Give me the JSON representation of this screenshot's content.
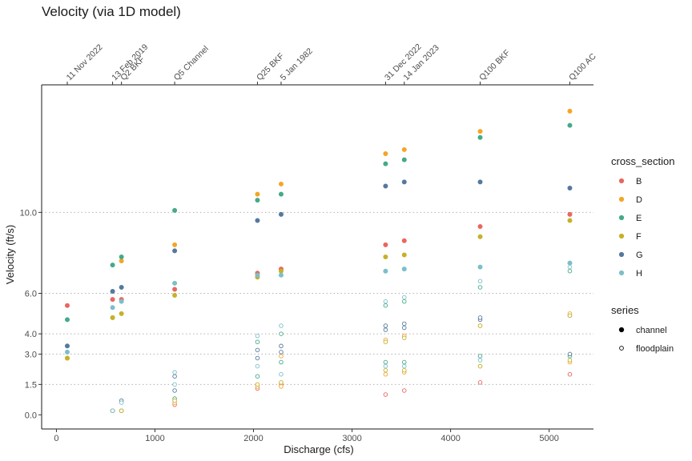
{
  "chart_data": {
    "type": "scatter",
    "title": "Velocity (via 1D model)",
    "xlabel": "Discharge (cfs)",
    "ylabel": "Velocity (ft/s)",
    "xlim": [
      -150,
      5450
    ],
    "ylim": [
      -0.7,
      16.3
    ],
    "x_ticks": [
      0,
      1000,
      2000,
      3000,
      4000,
      5000
    ],
    "y_ticks": [
      0.0,
      1.5,
      3.0,
      4.0,
      6.0,
      10.0
    ],
    "y_tick_labels": [
      "0.0",
      "1.5",
      "3.0",
      "4.0",
      "6.0",
      "10.0"
    ],
    "hgrid_dotted": [
      1.5,
      3.0,
      4.0,
      6.0,
      10.0
    ],
    "top_axis": [
      {
        "x": 110,
        "label": "11 Nov 2022"
      },
      {
        "x": 570,
        "label": "13 Feb 2019"
      },
      {
        "x": 660,
        "label": "Q2 BKF"
      },
      {
        "x": 1200,
        "label": "Q5 Channel"
      },
      {
        "x": 2040,
        "label": "Q25 BKF"
      },
      {
        "x": 2280,
        "label": "5 Jan 1982"
      },
      {
        "x": 3340,
        "label": "31 Dec 2022"
      },
      {
        "x": 3530,
        "label": "14 Jan 2023"
      },
      {
        "x": 4300,
        "label": "Q100 BKF"
      },
      {
        "x": 5210,
        "label": "Q100 AC"
      }
    ],
    "colors": {
      "B": "#e8675f",
      "D": "#f4a527",
      "E": "#45a98a",
      "F": "#c5b12a",
      "G": "#55799d",
      "H": "#7bbfc9"
    },
    "legend": {
      "position": "right",
      "cross_section_title": "cross_section",
      "cross_sections": [
        "B",
        "D",
        "E",
        "F",
        "G",
        "H"
      ],
      "series_title": "series",
      "series": [
        "channel",
        "floodplain"
      ]
    },
    "series": [
      {
        "name": "B",
        "channel": [
          [
            110,
            5.4
          ],
          [
            570,
            5.7
          ],
          [
            660,
            5.7
          ],
          [
            1200,
            6.2
          ],
          [
            2040,
            7.0
          ],
          [
            2280,
            7.2
          ],
          [
            3340,
            8.4
          ],
          [
            3530,
            8.6
          ],
          [
            4300,
            9.3
          ],
          [
            5210,
            9.9
          ]
        ],
        "floodplain": [
          [
            570,
            0.2
          ],
          [
            660,
            0.2
          ],
          [
            1200,
            0.5
          ],
          [
            2040,
            1.3
          ],
          [
            2280,
            1.5
          ],
          [
            3340,
            1.0
          ],
          [
            3530,
            1.2
          ],
          [
            4300,
            1.6
          ],
          [
            5210,
            2.0
          ]
        ]
      },
      {
        "name": "D",
        "channel": [
          [
            110,
            2.8
          ],
          [
            570,
            4.8
          ],
          [
            660,
            7.6
          ],
          [
            1200,
            8.4
          ],
          [
            2040,
            10.9
          ],
          [
            2280,
            11.4
          ],
          [
            3340,
            12.9
          ],
          [
            3530,
            13.1
          ],
          [
            4300,
            14.0
          ],
          [
            5210,
            15.0
          ]
        ],
        "floodplain": [
          [
            570,
            0.2
          ],
          [
            660,
            0.2
          ],
          [
            1200,
            0.6
          ],
          [
            2040,
            1.4
          ],
          [
            2280,
            1.4
          ],
          [
            3340,
            2.0
          ],
          [
            3530,
            2.1
          ],
          [
            4300,
            2.4
          ],
          [
            5210,
            2.6
          ]
        ]
      },
      {
        "name": "E",
        "channel": [
          [
            110,
            4.7
          ],
          [
            570,
            7.4
          ],
          [
            660,
            7.8
          ],
          [
            1200,
            10.1
          ],
          [
            2040,
            10.6
          ],
          [
            2280,
            10.9
          ],
          [
            3340,
            12.4
          ],
          [
            3530,
            12.6
          ],
          [
            4300,
            13.7
          ],
          [
            5210,
            14.3
          ]
        ],
        "floodplain": [
          [
            570,
            0.2
          ],
          [
            660,
            0.2
          ],
          [
            1200,
            0.8
          ],
          [
            2040,
            1.9
          ],
          [
            2280,
            2.6
          ],
          [
            3340,
            2.6
          ],
          [
            3530,
            2.6
          ],
          [
            4300,
            2.9
          ],
          [
            5210,
            2.9
          ]
        ]
      },
      {
        "name": "F",
        "channel": [
          [
            110,
            2.8
          ],
          [
            570,
            4.8
          ],
          [
            660,
            5.0
          ],
          [
            1200,
            5.9
          ],
          [
            2040,
            6.8
          ],
          [
            2280,
            7.1
          ],
          [
            3340,
            7.8
          ],
          [
            3530,
            7.9
          ],
          [
            4300,
            8.8
          ],
          [
            5210,
            9.6
          ]
        ],
        "floodplain": [
          [
            570,
            0.2
          ],
          [
            660,
            0.2
          ],
          [
            1200,
            0.7
          ],
          [
            2040,
            1.5
          ],
          [
            2280,
            1.6
          ],
          [
            3340,
            2.2
          ],
          [
            3530,
            2.2
          ],
          [
            4300,
            2.4
          ],
          [
            5210,
            2.7
          ]
        ]
      },
      {
        "name": "G",
        "channel": [
          [
            110,
            3.4
          ],
          [
            570,
            6.1
          ],
          [
            660,
            6.3
          ],
          [
            1200,
            8.1
          ],
          [
            2040,
            9.6
          ],
          [
            2280,
            9.9
          ],
          [
            3340,
            11.3
          ],
          [
            3530,
            11.5
          ],
          [
            4300,
            11.5
          ],
          [
            5210,
            11.2
          ]
        ],
        "floodplain": [
          [
            570,
            0.2
          ],
          [
            660,
            0.7
          ],
          [
            1200,
            1.9
          ],
          [
            2040,
            3.2
          ],
          [
            2280,
            3.4
          ],
          [
            3340,
            4.2
          ],
          [
            3530,
            4.3
          ],
          [
            4300,
            4.7
          ],
          [
            5210,
            4.9
          ]
        ]
      },
      {
        "name": "H",
        "channel": [
          [
            110,
            3.1
          ],
          [
            570,
            5.3
          ],
          [
            660,
            5.6
          ],
          [
            1200,
            6.5
          ],
          [
            2040,
            6.9
          ],
          [
            2280,
            6.9
          ],
          [
            3340,
            7.1
          ],
          [
            3530,
            7.2
          ],
          [
            4300,
            7.3
          ],
          [
            5210,
            7.5
          ]
        ],
        "floodplain": [
          [
            570,
            0.2
          ],
          [
            660,
            0.6
          ],
          [
            1200,
            2.1
          ],
          [
            2040,
            3.9
          ],
          [
            2280,
            4.4
          ],
          [
            3340,
            5.6
          ],
          [
            3530,
            5.8
          ],
          [
            4300,
            6.6
          ],
          [
            5210,
            7.3
          ]
        ]
      }
    ],
    "extra_channel_points": [],
    "extra_floodplain_points": [
      {
        "cs": "G",
        "x": 1200,
        "y": 1.2
      },
      {
        "cs": "H",
        "x": 1200,
        "y": 1.5
      },
      {
        "cs": "E",
        "x": 2040,
        "y": 3.6
      },
      {
        "cs": "G",
        "x": 2040,
        "y": 2.8
      },
      {
        "cs": "H",
        "x": 2040,
        "y": 2.4
      },
      {
        "cs": "E",
        "x": 2280,
        "y": 4.0
      },
      {
        "cs": "G",
        "x": 2280,
        "y": 3.1
      },
      {
        "cs": "H",
        "x": 2280,
        "y": 2.0
      },
      {
        "cs": "D",
        "x": 2280,
        "y": 2.9
      },
      {
        "cs": "E",
        "x": 3340,
        "y": 5.4
      },
      {
        "cs": "G",
        "x": 3340,
        "y": 4.4
      },
      {
        "cs": "D",
        "x": 3340,
        "y": 3.7
      },
      {
        "cs": "F",
        "x": 3340,
        "y": 3.6
      },
      {
        "cs": "H",
        "x": 3340,
        "y": 2.4
      },
      {
        "cs": "E",
        "x": 3530,
        "y": 5.6
      },
      {
        "cs": "G",
        "x": 3530,
        "y": 4.5
      },
      {
        "cs": "D",
        "x": 3530,
        "y": 3.9
      },
      {
        "cs": "F",
        "x": 3530,
        "y": 3.8
      },
      {
        "cs": "H",
        "x": 3530,
        "y": 2.4
      },
      {
        "cs": "E",
        "x": 4300,
        "y": 6.3
      },
      {
        "cs": "G",
        "x": 4300,
        "y": 4.8
      },
      {
        "cs": "D",
        "x": 4300,
        "y": 4.4
      },
      {
        "cs": "F",
        "x": 4300,
        "y": 4.4
      },
      {
        "cs": "H",
        "x": 4300,
        "y": 2.7
      },
      {
        "cs": "E",
        "x": 5210,
        "y": 7.1
      },
      {
        "cs": "D",
        "x": 5210,
        "y": 5.0
      },
      {
        "cs": "F",
        "x": 5210,
        "y": 4.9
      },
      {
        "cs": "G",
        "x": 5210,
        "y": 3.0
      }
    ]
  }
}
